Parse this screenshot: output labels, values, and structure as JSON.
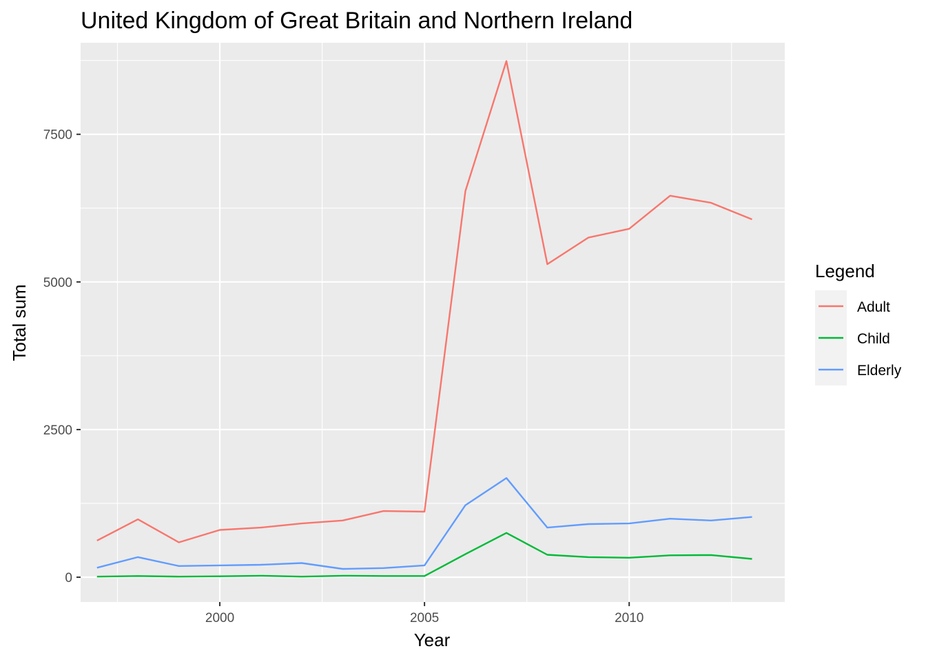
{
  "chart_data": {
    "type": "line",
    "title": "United Kingdom of Great Britain and Northern Ireland",
    "xlabel": "Year",
    "ylabel": "Total sum",
    "xlim": [
      1996.6,
      2013.8
    ],
    "ylim": [
      -420,
      9050
    ],
    "x_ticks": [
      2000,
      2005,
      2010
    ],
    "x_tick_labels": [
      "2000",
      "2005",
      "2010"
    ],
    "y_ticks": [
      0,
      2500,
      5000,
      7500
    ],
    "y_tick_labels": [
      "0",
      "2500",
      "5000",
      "7500"
    ],
    "grid": true,
    "legend": {
      "title": "Legend",
      "position": "right"
    },
    "x": [
      1997,
      1998,
      1999,
      2000,
      2001,
      2002,
      2003,
      2004,
      2005,
      2006,
      2007,
      2008,
      2009,
      2010,
      2011,
      2012,
      2013
    ],
    "series": [
      {
        "name": "Adult",
        "color": "#F8766D",
        "values": [
          620,
          980,
          590,
          800,
          840,
          910,
          960,
          1120,
          1110,
          6540,
          8740,
          5300,
          5750,
          5900,
          6460,
          6340,
          6060
        ]
      },
      {
        "name": "Child",
        "color": "#00BA38",
        "values": [
          10,
          20,
          10,
          15,
          25,
          10,
          25,
          20,
          20,
          390,
          750,
          380,
          340,
          330,
          370,
          375,
          310
        ]
      },
      {
        "name": "Elderly",
        "color": "#619CFF",
        "values": [
          160,
          340,
          190,
          200,
          210,
          240,
          140,
          155,
          200,
          1220,
          1680,
          840,
          900,
          910,
          990,
          960,
          1020
        ]
      }
    ]
  }
}
